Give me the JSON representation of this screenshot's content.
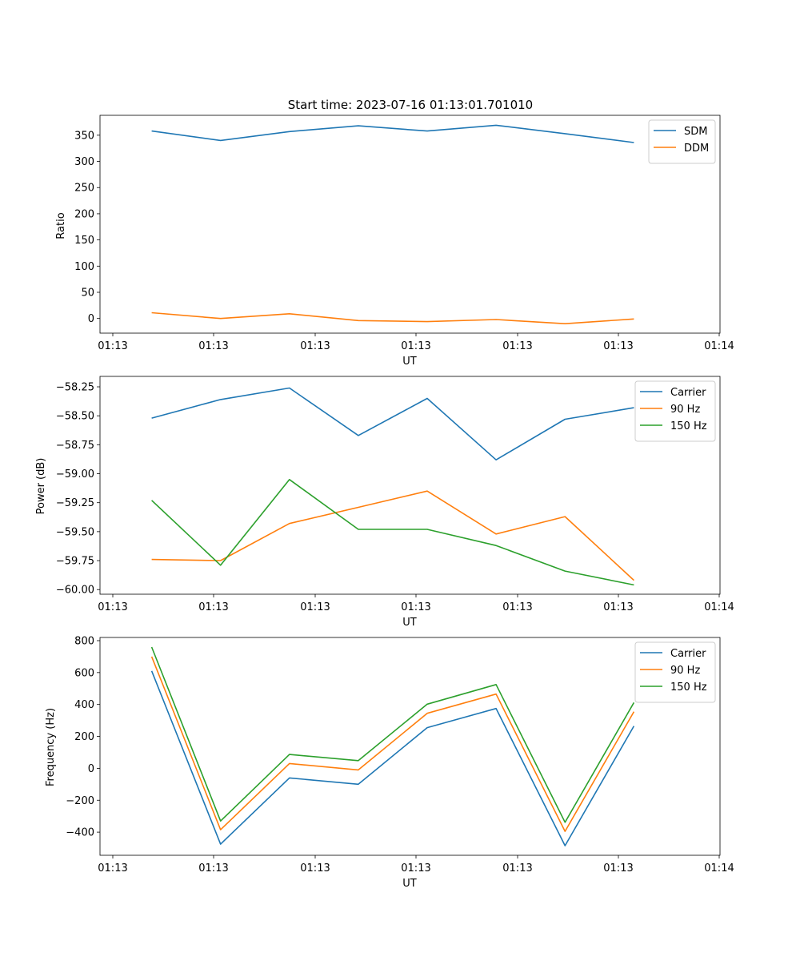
{
  "colors": {
    "c0": "#1f77b4",
    "c1": "#ff7f0e",
    "c2": "#2ca02c"
  },
  "chart_data": [
    {
      "type": "line",
      "title": "Start time: 2023-07-16 01:13:01.701010",
      "xlabel": "UT",
      "ylabel": "Ratio",
      "x": [
        1,
        2,
        3,
        4,
        5,
        6,
        7,
        8
      ],
      "xlim": [
        0.25,
        9.25
      ],
      "xtick_labels": [
        "01:13",
        "01:13",
        "01:13",
        "01:13",
        "01:13",
        "01:13",
        "01:14"
      ],
      "ylim": [
        -28,
        388
      ],
      "yticks": [
        0,
        50,
        100,
        150,
        200,
        250,
        300,
        350
      ],
      "ytick_labels": [
        "0",
        "50",
        "100",
        "150",
        "200",
        "250",
        "300",
        "350"
      ],
      "legend_position": "top-right",
      "series": [
        {
          "name": "SDM",
          "color": "#1f77b4",
          "values": [
            358,
            340,
            357,
            368,
            358,
            369,
            353,
            336
          ]
        },
        {
          "name": "DDM",
          "color": "#ff7f0e",
          "values": [
            11,
            0,
            9,
            -4,
            -6,
            -2,
            -10,
            -1
          ]
        }
      ]
    },
    {
      "type": "line",
      "title": "",
      "xlabel": "UT",
      "ylabel": "Power (dB)",
      "x": [
        1,
        2,
        3,
        4,
        5,
        6,
        7,
        8
      ],
      "xlim": [
        0.25,
        9.25
      ],
      "xtick_labels": [
        "01:13",
        "01:13",
        "01:13",
        "01:13",
        "01:13",
        "01:13",
        "01:14"
      ],
      "ylim": [
        -60.04,
        -58.16
      ],
      "yticks": [
        -60.0,
        -59.75,
        -59.5,
        -59.25,
        -59.0,
        -58.75,
        -58.5,
        -58.25
      ],
      "ytick_labels": [
        "−60.00",
        "−59.75",
        "−59.50",
        "−59.25",
        "−59.00",
        "−58.75",
        "−58.50",
        "−58.25"
      ],
      "legend_position": "top-right",
      "series": [
        {
          "name": "Carrier",
          "color": "#1f77b4",
          "values": [
            -58.52,
            -58.36,
            -58.26,
            -58.67,
            -58.35,
            -58.88,
            -58.53,
            -58.43
          ]
        },
        {
          "name": "90 Hz",
          "color": "#ff7f0e",
          "values": [
            -59.74,
            -59.75,
            -59.43,
            -59.29,
            -59.15,
            -59.52,
            -59.37,
            -59.92
          ]
        },
        {
          "name": "150 Hz",
          "color": "#2ca02c",
          "values": [
            -59.23,
            -59.79,
            -59.05,
            -59.48,
            -59.48,
            -59.62,
            -59.84,
            -59.96
          ]
        }
      ]
    },
    {
      "type": "line",
      "title": "",
      "xlabel": "UT",
      "ylabel": "Frequency (Hz)",
      "x": [
        1,
        2,
        3,
        4,
        5,
        6,
        7,
        8
      ],
      "xlim": [
        0.25,
        9.25
      ],
      "xtick_labels": [
        "01:13",
        "01:13",
        "01:13",
        "01:13",
        "01:13",
        "01:13",
        "01:14"
      ],
      "ylim": [
        -545,
        820
      ],
      "yticks": [
        -400,
        -200,
        0,
        200,
        400,
        600,
        800
      ],
      "ytick_labels": [
        "−400",
        "−200",
        "0",
        "200",
        "400",
        "600",
        "800"
      ],
      "legend_position": "top-right",
      "series": [
        {
          "name": "Carrier",
          "color": "#1f77b4",
          "values": [
            610,
            -475,
            -60,
            -100,
            255,
            375,
            -485,
            265
          ]
        },
        {
          "name": "90 Hz",
          "color": "#ff7f0e",
          "values": [
            700,
            -385,
            30,
            -10,
            345,
            465,
            -395,
            355
          ]
        },
        {
          "name": "150 Hz",
          "color": "#2ca02c",
          "values": [
            760,
            -330,
            87,
            48,
            402,
            525,
            -338,
            412
          ]
        }
      ]
    }
  ]
}
